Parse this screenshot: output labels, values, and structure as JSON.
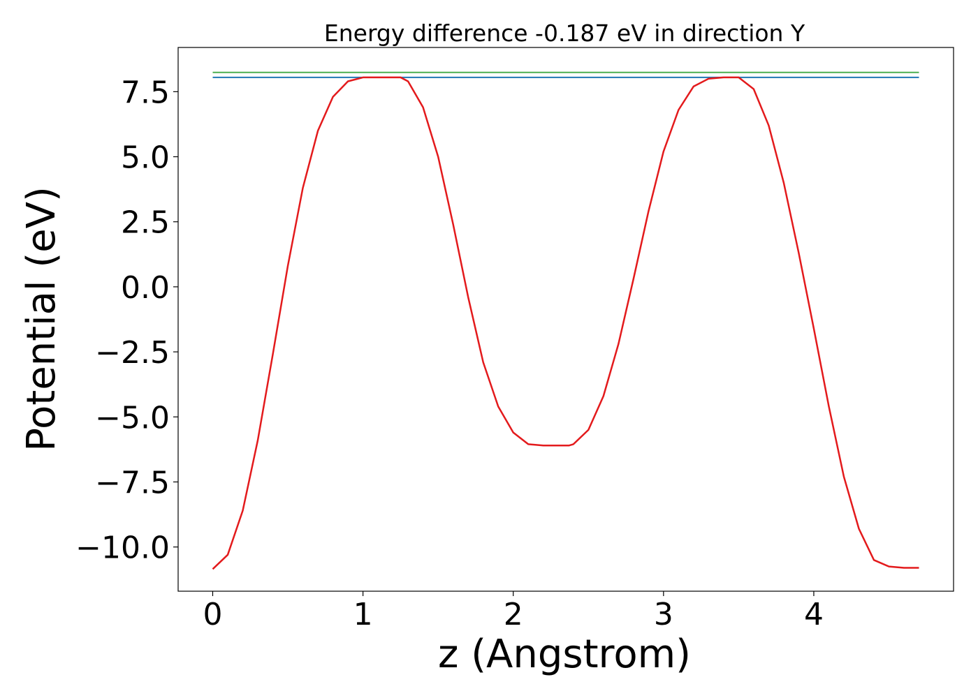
{
  "chart_data": {
    "type": "line",
    "title": "Energy difference -0.187 eV in direction Y",
    "xlabel": "z (Angstrom)",
    "ylabel": "Potential (eV)",
    "xlim": [
      -0.23,
      4.93
    ],
    "ylim": [
      -11.7,
      9.2
    ],
    "xticks": [
      0,
      1,
      2,
      3,
      4
    ],
    "xtick_labels": [
      "0",
      "1",
      "2",
      "3",
      "4"
    ],
    "yticks": [
      -10.0,
      -7.5,
      -5.0,
      -2.5,
      0.0,
      2.5,
      5.0,
      7.5
    ],
    "ytick_labels": [
      "−10.0",
      "−7.5",
      "−5.0",
      "−2.5",
      "0.0",
      "2.5",
      "5.0",
      "7.5"
    ],
    "grid": false,
    "legend": "none",
    "series": [
      {
        "color": "#e31a1c",
        "x": [
          0.0,
          0.1,
          0.2,
          0.3,
          0.4,
          0.5,
          0.6,
          0.7,
          0.8,
          0.9,
          1.0,
          1.1,
          1.2,
          1.25,
          1.3,
          1.4,
          1.5,
          1.6,
          1.7,
          1.8,
          1.9,
          2.0,
          2.1,
          2.2,
          2.3,
          2.37,
          2.4,
          2.5,
          2.6,
          2.7,
          2.8,
          2.9,
          3.0,
          3.1,
          3.2,
          3.3,
          3.4,
          3.49,
          3.5,
          3.6,
          3.7,
          3.8,
          3.9,
          4.0,
          4.1,
          4.2,
          4.3,
          4.4,
          4.5,
          4.6,
          4.7
        ],
        "values": [
          -10.85,
          -10.3,
          -8.6,
          -5.9,
          -2.6,
          0.8,
          3.8,
          6.0,
          7.3,
          7.9,
          8.05,
          8.05,
          8.05,
          8.05,
          7.9,
          6.9,
          5.0,
          2.4,
          -0.4,
          -2.9,
          -4.6,
          -5.6,
          -6.05,
          -6.1,
          -6.1,
          -6.1,
          -6.05,
          -5.5,
          -4.2,
          -2.2,
          0.3,
          2.9,
          5.2,
          6.8,
          7.7,
          8.0,
          8.05,
          8.05,
          8.05,
          7.6,
          6.2,
          4.0,
          1.3,
          -1.6,
          -4.6,
          -7.3,
          -9.3,
          -10.5,
          -10.75,
          -10.8,
          -10.8
        ]
      },
      {
        "color": "#1f78b4",
        "x": [
          0.0,
          4.7
        ],
        "values": [
          8.05,
          8.05
        ]
      },
      {
        "color": "#4caf50",
        "x": [
          0.0,
          4.7
        ],
        "values": [
          8.24,
          8.24
        ]
      }
    ]
  }
}
